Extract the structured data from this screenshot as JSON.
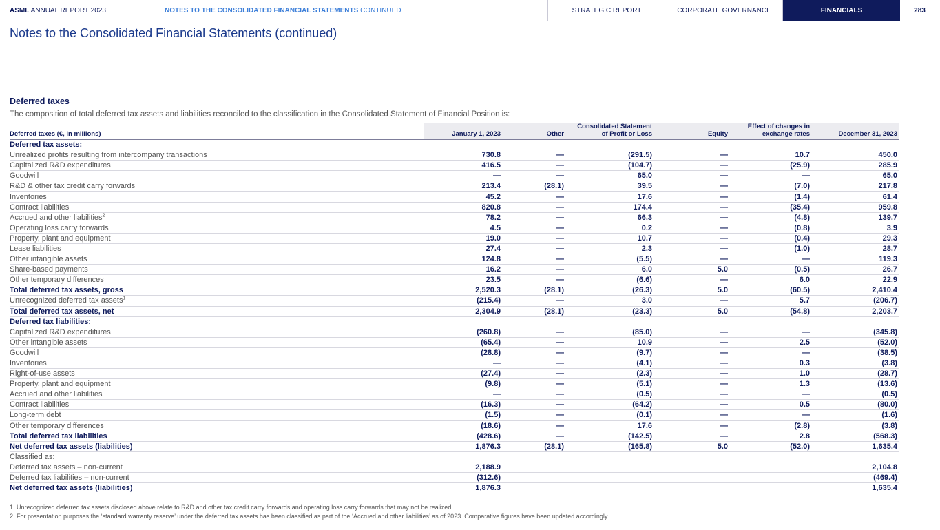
{
  "header": {
    "brand": "ASML",
    "report": "ANNUAL REPORT 2023",
    "section_bold": "NOTES TO THE CONSOLIDATED FINANCIAL STATEMENTS",
    "section_rest": "CONTINUED",
    "tabs": [
      "STRATEGIC REPORT",
      "CORPORATE GOVERNANCE",
      "FINANCIALS"
    ],
    "page": "283"
  },
  "title": "Notes to the Consolidated Financial Statements (continued)",
  "section": {
    "heading": "Deferred taxes",
    "intro": "The composition of total deferred tax assets and liabilities reconciled to the classification in the Consolidated Statement of Financial Position is:"
  },
  "table": {
    "columns": [
      [
        "Deferred taxes (€, in millions)"
      ],
      [
        "January 1, 2023"
      ],
      [
        "Other"
      ],
      [
        "Consolidated Statement",
        "of Profit or Loss"
      ],
      [
        "Equity"
      ],
      [
        "Effect of changes in",
        "exchange rates"
      ],
      [
        "December 31, 2023"
      ]
    ],
    "rows": [
      {
        "label": "Deferred tax assets:",
        "bold": true
      },
      {
        "label": "Unrealized profits resulting from intercompany transactions",
        "values": [
          "730.8",
          "—",
          "(291.5)",
          "—",
          "10.7",
          "450.0"
        ]
      },
      {
        "label": "Capitalized R&D expenditures",
        "values": [
          "416.5",
          "—",
          "(104.7)",
          "—",
          "(25.9)",
          "285.9"
        ]
      },
      {
        "label": "Goodwill",
        "values": [
          "—",
          "—",
          "65.0",
          "—",
          "—",
          "65.0"
        ]
      },
      {
        "label": "R&D & other tax credit carry forwards",
        "values": [
          "213.4",
          "(28.1)",
          "39.5",
          "—",
          "(7.0)",
          "217.8"
        ]
      },
      {
        "label": "Inventories",
        "values": [
          "45.2",
          "—",
          "17.6",
          "—",
          "(1.4)",
          "61.4"
        ]
      },
      {
        "label": "Contract liabilities",
        "values": [
          "820.8",
          "—",
          "174.4",
          "—",
          "(35.4)",
          "959.8"
        ]
      },
      {
        "label": "Accrued and other liabilities",
        "sup": "2",
        "values": [
          "78.2",
          "—",
          "66.3",
          "—",
          "(4.8)",
          "139.7"
        ]
      },
      {
        "label": "Operating loss carry forwards",
        "values": [
          "4.5",
          "—",
          "0.2",
          "—",
          "(0.8)",
          "3.9"
        ]
      },
      {
        "label": "Property, plant and equipment",
        "values": [
          "19.0",
          "—",
          "10.7",
          "—",
          "(0.4)",
          "29.3"
        ]
      },
      {
        "label": "Lease liabilities",
        "values": [
          "27.4",
          "—",
          "2.3",
          "—",
          "(1.0)",
          "28.7"
        ]
      },
      {
        "label": "Other intangible assets",
        "values": [
          "124.8",
          "—",
          "(5.5)",
          "—",
          "—",
          "119.3"
        ]
      },
      {
        "label": "Share-based payments",
        "values": [
          "16.2",
          "—",
          "6.0",
          "5.0",
          "(0.5)",
          "26.7"
        ]
      },
      {
        "label": "Other temporary differences",
        "values": [
          "23.5",
          "—",
          "(6.6)",
          "—",
          "6.0",
          "22.9"
        ]
      },
      {
        "label": "Total deferred tax assets, gross",
        "bold": true,
        "rule": true,
        "values": [
          "2,520.3",
          "(28.1)",
          "(26.3)",
          "5.0",
          "(60.5)",
          "2,410.4"
        ]
      },
      {
        "label": "Unrecognized deferred tax assets",
        "sup": "1",
        "values": [
          "(215.4)",
          "—",
          "3.0",
          "—",
          "5.7",
          "(206.7)"
        ]
      },
      {
        "label": "Total deferred tax assets, net",
        "bold": true,
        "values": [
          "2,304.9",
          "(28.1)",
          "(23.3)",
          "5.0",
          "(54.8)",
          "2,203.7"
        ]
      },
      {
        "label": "Deferred tax liabilities:",
        "bold": true
      },
      {
        "label": "Capitalized R&D expenditures",
        "values": [
          "(260.8)",
          "—",
          "(85.0)",
          "—",
          "—",
          "(345.8)"
        ]
      },
      {
        "label": "Other intangible assets",
        "values": [
          "(65.4)",
          "—",
          "10.9",
          "—",
          "2.5",
          "(52.0)"
        ]
      },
      {
        "label": "Goodwill",
        "values": [
          "(28.8)",
          "—",
          "(9.7)",
          "—",
          "—",
          "(38.5)"
        ]
      },
      {
        "label": "Inventories",
        "values": [
          "—",
          "—",
          "(4.1)",
          "—",
          "0.3",
          "(3.8)"
        ]
      },
      {
        "label": "Right-of-use assets",
        "values": [
          "(27.4)",
          "—",
          "(2.3)",
          "—",
          "1.0",
          "(28.7)"
        ]
      },
      {
        "label": "Property, plant and equipment",
        "values": [
          "(9.8)",
          "—",
          "(5.1)",
          "—",
          "1.3",
          "(13.6)"
        ]
      },
      {
        "label": "Accrued and other liabilities",
        "values": [
          "—",
          "—",
          "(0.5)",
          "—",
          "—",
          "(0.5)"
        ]
      },
      {
        "label": "Contract liabilities",
        "values": [
          "(16.3)",
          "—",
          "(64.2)",
          "—",
          "0.5",
          "(80.0)"
        ]
      },
      {
        "label": "Long-term debt",
        "values": [
          "(1.5)",
          "—",
          "(0.1)",
          "—",
          "—",
          "(1.6)"
        ]
      },
      {
        "label": "Other temporary differences",
        "values": [
          "(18.6)",
          "—",
          "17.6",
          "—",
          "(2.8)",
          "(3.8)"
        ]
      },
      {
        "label": "Total deferred tax liabilities",
        "bold": true,
        "rule": true,
        "values": [
          "(428.6)",
          "—",
          "(142.5)",
          "—",
          "2.8",
          "(568.3)"
        ]
      },
      {
        "label": "Net deferred tax assets (liabilities)",
        "bold": true,
        "values": [
          "1,876.3",
          "(28.1)",
          "(165.8)",
          "5.0",
          "(52.0)",
          "1,635.4"
        ]
      },
      {
        "label": "Classified as:"
      },
      {
        "label": "Deferred tax assets – non-current",
        "values": [
          "2,188.9",
          null,
          null,
          null,
          null,
          "2,104.8"
        ]
      },
      {
        "label": "Deferred tax liabilities – non-current",
        "values": [
          "(312.6)",
          null,
          null,
          null,
          null,
          "(469.4)"
        ]
      },
      {
        "label": "Net deferred tax assets (liabilities)",
        "bold": true,
        "values": [
          "1,876.3",
          null,
          null,
          null,
          null,
          "1,635.4"
        ]
      }
    ]
  },
  "footnotes": [
    "1. Unrecognized deferred tax assets disclosed above relate to R&D and other tax credit carry forwards and operating loss carry forwards that may not be realized.",
    "2. For presentation purposes the ‘standard warranty reserve’ under the deferred tax assets has been classified as part of the ‘Accrued and other liabilities’ as of 2023. Comparative figures have been updated accordingly."
  ]
}
